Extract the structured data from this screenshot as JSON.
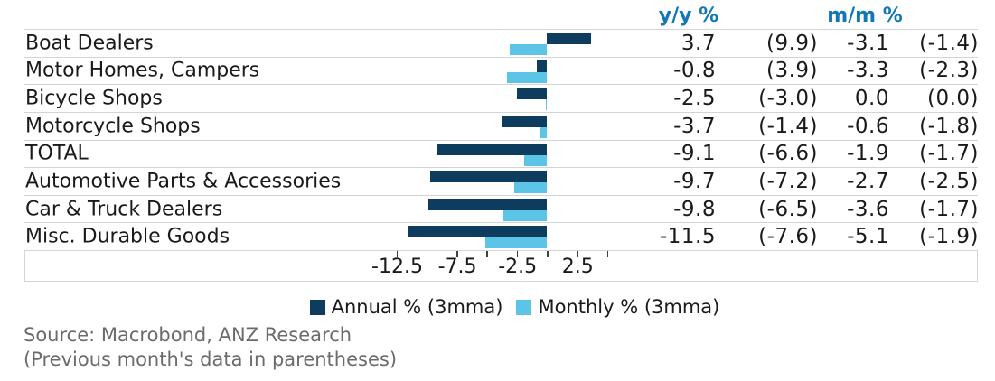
{
  "chart_data": {
    "type": "bar",
    "orientation": "horizontal",
    "title": "",
    "categories": [
      "Boat Dealers",
      "Motor Homes, Campers",
      "Bicycle Shops",
      "Motorcycle Shops",
      "TOTAL",
      "Automotive Parts & Accessories",
      "Car & Truck Dealers",
      "Misc. Durable Goods"
    ],
    "series": [
      {
        "name": "Annual % (3mma)",
        "color": "#0d3c5f",
        "values": [
          3.7,
          -0.8,
          -2.5,
          -3.7,
          -9.1,
          -9.7,
          -9.8,
          -11.5
        ]
      },
      {
        "name": "Monthly % (3mma)",
        "color": "#5bc4e7",
        "values": [
          -3.1,
          -3.3,
          0.0,
          -0.6,
          -1.9,
          -2.7,
          -3.6,
          -5.1
        ]
      }
    ],
    "x_ticks": [
      -12.5,
      -10,
      -7.5,
      -5,
      -2.5,
      0,
      2.5,
      5
    ],
    "x_tick_labels": [
      {
        "value": -12.5,
        "label": "-12.5"
      },
      {
        "value": -7.5,
        "label": "-7.5"
      },
      {
        "value": -2.5,
        "label": "-2.5"
      },
      {
        "value": 2.5,
        "label": "2.5"
      }
    ],
    "xlim": [
      -12.5,
      5
    ],
    "grid": "row-separators",
    "legend_position": "bottom"
  },
  "table": {
    "col_headers": [
      "y/y %",
      "m/m %"
    ],
    "rows": [
      {
        "label": "Boat Dealers",
        "yy": "3.7",
        "yy_prev": "(9.9)",
        "mm": "-3.1",
        "mm_prev": "(-1.4)"
      },
      {
        "label": "Motor Homes, Campers",
        "yy": "-0.8",
        "yy_prev": "(3.9)",
        "mm": "-3.3",
        "mm_prev": "(-2.3)"
      },
      {
        "label": "Bicycle Shops",
        "yy": "-2.5",
        "yy_prev": "(-3.0)",
        "mm": "0.0",
        "mm_prev": "(0.0)"
      },
      {
        "label": "Motorcycle Shops",
        "yy": "-3.7",
        "yy_prev": "(-1.4)",
        "mm": "-0.6",
        "mm_prev": "(-1.8)"
      },
      {
        "label": "TOTAL",
        "yy": "-9.1",
        "yy_prev": "(-6.6)",
        "mm": "-1.9",
        "mm_prev": "(-1.7)"
      },
      {
        "label": "Automotive Parts & Accessories",
        "yy": "-9.7",
        "yy_prev": "(-7.2)",
        "mm": "-2.7",
        "mm_prev": "(-2.5)"
      },
      {
        "label": "Car & Truck Dealers",
        "yy": "-9.8",
        "yy_prev": "(-6.5)",
        "mm": "-3.6",
        "mm_prev": "(-1.7)"
      },
      {
        "label": "Misc. Durable Goods",
        "yy": "-11.5",
        "yy_prev": "(-7.6)",
        "mm": "-5.1",
        "mm_prev": "(-1.9)"
      }
    ]
  },
  "legend": {
    "items": [
      {
        "label": "Annual % (3mma)",
        "color": "#0d3c5f"
      },
      {
        "label": "Monthly % (3mma)",
        "color": "#5bc4e7"
      }
    ]
  },
  "source": {
    "line1": "Source: Macrobond, ANZ Research",
    "line2": "(Previous month's data in parentheses)"
  },
  "colors": {
    "annual": "#0d3c5f",
    "monthly": "#5bc4e7",
    "header_text": "#1278b5",
    "grid_line": "#d4d4d4",
    "tick_mark": "#3f3f3f",
    "source_text": "#6b6b6b"
  }
}
